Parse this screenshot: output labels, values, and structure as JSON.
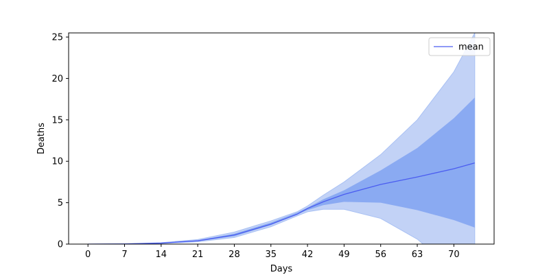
{
  "chart_data": {
    "type": "line",
    "title": "",
    "xlabel": "Days",
    "ylabel": "Deaths",
    "xlim": [
      -3.7,
      77.7
    ],
    "ylim": [
      0,
      25.5
    ],
    "xticks": [
      0,
      7,
      14,
      21,
      28,
      35,
      42,
      49,
      56,
      63,
      70
    ],
    "yticks": [
      0,
      5,
      10,
      15,
      20,
      25
    ],
    "grid": false,
    "legend": {
      "position": "top-right",
      "entries": [
        "mean"
      ]
    },
    "colors": {
      "mean": "#4a5cf0",
      "inner_band": "#8aaaf2",
      "outer_band": "#c2d2f6",
      "outer_band_edge": "#a8c0f3"
    },
    "x": [
      0,
      7,
      14,
      21,
      28,
      35,
      40,
      42,
      45,
      49,
      56,
      63,
      70,
      74
    ],
    "series": [
      {
        "name": "mean",
        "values": [
          0,
          0.02,
          0.12,
          0.4,
          1.1,
          2.4,
          3.6,
          4.3,
          5.1,
          6.0,
          7.2,
          8.1,
          9.1,
          9.8
        ]
      }
    ],
    "bands": [
      {
        "role": "outer",
        "lower": [
          0,
          0.01,
          0.08,
          0.28,
          0.8,
          2.1,
          3.4,
          3.9,
          4.2,
          4.2,
          3.1,
          0.6,
          -3.2,
          -5.5
        ],
        "upper": [
          0,
          0.03,
          0.17,
          0.55,
          1.45,
          2.8,
          3.9,
          4.6,
          5.9,
          7.5,
          10.8,
          15.0,
          20.8,
          25.5
        ]
      },
      {
        "role": "inner",
        "lower": [
          0,
          0.015,
          0.1,
          0.34,
          0.95,
          2.3,
          3.6,
          4.1,
          4.7,
          5.1,
          5.0,
          4.1,
          2.9,
          2.0
        ],
        "upper": [
          0,
          0.025,
          0.14,
          0.46,
          1.25,
          2.6,
          3.8,
          4.4,
          5.4,
          6.5,
          8.9,
          11.6,
          15.2,
          17.7
        ]
      }
    ]
  }
}
